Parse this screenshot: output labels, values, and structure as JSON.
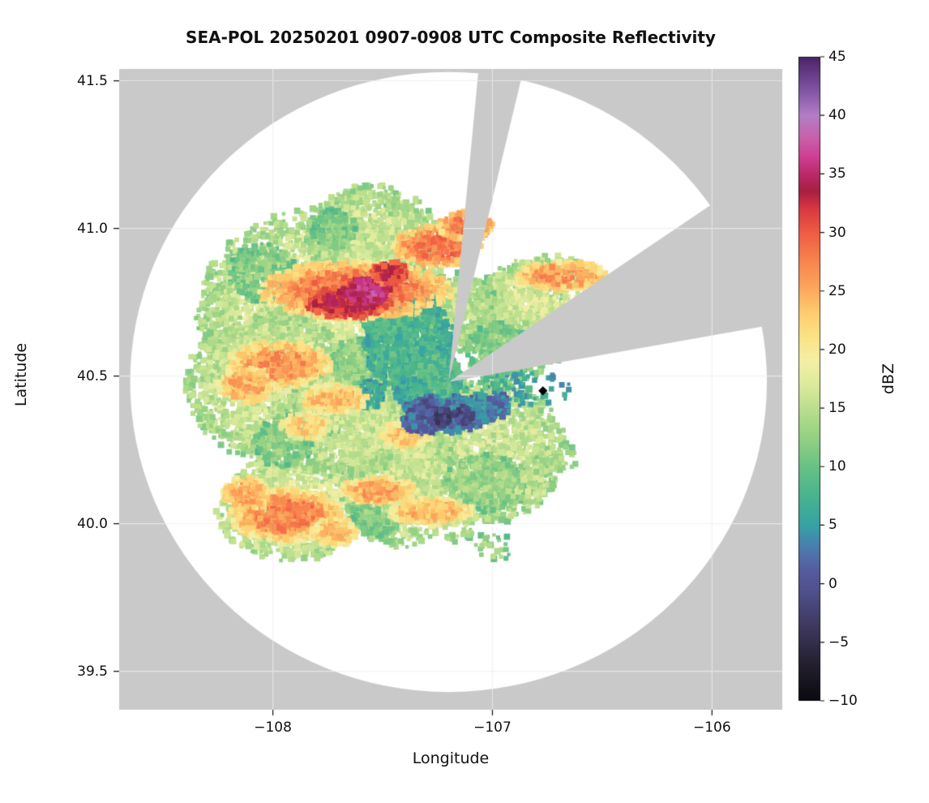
{
  "chart_data": {
    "type": "heatmap",
    "subtype": "radar_composite_reflectivity_ppi",
    "title": "SEA-POL 20250201 0907-0908 UTC Composite Reflectivity",
    "xlabel": "Longitude",
    "ylabel": "Latitude",
    "xlim": [
      -108.7,
      -105.68
    ],
    "ylim": [
      39.37,
      41.54
    ],
    "xticks": [
      -108,
      -107,
      -106
    ],
    "xtick_labels": [
      "−108",
      "−107",
      "−106"
    ],
    "yticks": [
      39.5,
      40.0,
      40.5,
      41.0,
      41.5
    ],
    "ytick_labels": [
      "39.5",
      "40.0",
      "40.5",
      "41.0",
      "41.5"
    ],
    "grid": true,
    "background_outside_scan": "#c9c9c9",
    "scan_area_color": "#ffffff",
    "colorbar": {
      "label": "dBZ",
      "min": -10,
      "max": 45,
      "ticks": [
        45,
        40,
        35,
        30,
        25,
        20,
        15,
        10,
        5,
        0,
        -5,
        -10
      ],
      "tick_labels": [
        "45",
        "40",
        "35",
        "30",
        "25",
        "20",
        "15",
        "10",
        "5",
        "0",
        "−5",
        "−10"
      ]
    },
    "colormap_stops_dbz_hex": [
      [
        -10,
        "#0a0a10"
      ],
      [
        -7,
        "#231f2e"
      ],
      [
        -4,
        "#3b3659"
      ],
      [
        -1,
        "#4e4e88"
      ],
      [
        1,
        "#565a9e"
      ],
      [
        3,
        "#4b7bb0"
      ],
      [
        5,
        "#37a2a3"
      ],
      [
        7.5,
        "#49b48e"
      ],
      [
        10,
        "#68c286"
      ],
      [
        12.5,
        "#94d184"
      ],
      [
        15,
        "#bcdf8e"
      ],
      [
        17,
        "#dcea9d"
      ],
      [
        19,
        "#f4efa5"
      ],
      [
        21,
        "#fbe387"
      ],
      [
        23,
        "#fdcf70"
      ],
      [
        25,
        "#fcab5e"
      ],
      [
        27.5,
        "#f9854f"
      ],
      [
        30,
        "#ee5c43"
      ],
      [
        32,
        "#d8393f"
      ],
      [
        33.5,
        "#a81f41"
      ],
      [
        35,
        "#bb2a6a"
      ],
      [
        36.5,
        "#cf4094"
      ],
      [
        38,
        "#c95fa9"
      ],
      [
        40,
        "#b27fc6"
      ],
      [
        42,
        "#8456a8"
      ],
      [
        45,
        "#4b2368"
      ]
    ],
    "radar": {
      "center_lon": -107.2,
      "center_lat": 40.48,
      "radius_lon_deg": 1.45,
      "radius_lat_deg": 1.05,
      "blocked_sectors_azimuth_deg": [
        [
          5.5,
          14.5
        ],
        [
          56,
          81
        ]
      ],
      "site_marker": {
        "lon": -106.77,
        "lat": 40.45,
        "symbol": "diamond",
        "color": "#000000"
      }
    },
    "echoes": {
      "fields": [
        "lon",
        "lat",
        "semi_axis_lon_deg",
        "semi_axis_lat_deg",
        "rotation_deg",
        "dbz",
        "density",
        "edge_falloff_dbz"
      ],
      "blobs": [
        [
          -107.75,
          40.7,
          0.6,
          0.38,
          33,
          17,
          1.0,
          -4
        ],
        [
          -108.02,
          40.47,
          0.38,
          0.26,
          20,
          16,
          1.0,
          -3
        ],
        [
          -107.42,
          40.38,
          0.32,
          0.26,
          0,
          16,
          1.0,
          -3
        ],
        [
          -107.55,
          40.97,
          0.3,
          0.18,
          30,
          16,
          1.0,
          -3
        ],
        [
          -107.08,
          40.25,
          0.42,
          0.26,
          -10,
          16,
          1.0,
          -3
        ],
        [
          -106.88,
          40.68,
          0.24,
          0.2,
          -20,
          15,
          0.9,
          -3
        ],
        [
          -107.92,
          40.05,
          0.34,
          0.18,
          12,
          17,
          1.0,
          -3
        ],
        [
          -107.42,
          40.14,
          0.28,
          0.22,
          0,
          16,
          1.0,
          -3
        ],
        [
          -106.75,
          40.78,
          0.28,
          0.13,
          75,
          17,
          1.0,
          -3
        ],
        [
          -107.65,
          40.35,
          0.3,
          0.2,
          15,
          16,
          1.0,
          -3
        ],
        [
          -107.15,
          40.72,
          0.18,
          0.14,
          0,
          15,
          1.0,
          -3
        ],
        [
          -108.05,
          40.85,
          0.16,
          0.1,
          20,
          12,
          1.2,
          -2
        ],
        [
          -107.95,
          40.28,
          0.14,
          0.09,
          0,
          12,
          1.2,
          -2
        ],
        [
          -107.02,
          40.14,
          0.2,
          0.1,
          -5,
          13,
          1.2,
          -2
        ],
        [
          -107.52,
          40.04,
          0.13,
          0.09,
          0,
          12,
          1.2,
          -2
        ],
        [
          -106.97,
          40.58,
          0.16,
          0.1,
          60,
          12,
          1.2,
          -2
        ],
        [
          -107.72,
          41.0,
          0.1,
          0.07,
          30,
          12,
          1.2,
          -2
        ],
        [
          -107.62,
          40.55,
          0.12,
          0.08,
          0,
          13,
          1.2,
          -2
        ],
        [
          -107.38,
          40.62,
          0.21,
          0.17,
          -15,
          8,
          1.6,
          -2
        ],
        [
          -107.28,
          40.49,
          0.14,
          0.11,
          0,
          9,
          1.6,
          -2
        ],
        [
          -107.47,
          40.71,
          0.13,
          0.1,
          0,
          9,
          1.4,
          -2
        ],
        [
          -107.55,
          40.44,
          0.06,
          0.05,
          0,
          6,
          1.6,
          -1
        ],
        [
          -107.36,
          40.44,
          0.09,
          0.05,
          0,
          7,
          1.5,
          -1
        ],
        [
          -107.62,
          40.79,
          0.44,
          0.1,
          33,
          28,
          1.8,
          -7
        ],
        [
          -107.25,
          40.94,
          0.2,
          0.07,
          33,
          28,
          1.8,
          -6
        ],
        [
          -107.97,
          40.54,
          0.24,
          0.08,
          25,
          26,
          1.7,
          -6
        ],
        [
          -108.12,
          40.47,
          0.13,
          0.06,
          15,
          25,
          1.6,
          -5
        ],
        [
          -107.12,
          41.01,
          0.13,
          0.05,
          28,
          28,
          1.8,
          -6
        ],
        [
          -107.72,
          40.42,
          0.16,
          0.05,
          20,
          24,
          1.6,
          -5
        ],
        [
          -107.85,
          40.33,
          0.12,
          0.045,
          10,
          23,
          1.5,
          -5
        ],
        [
          -107.66,
          40.75,
          0.2,
          0.055,
          33,
          33,
          2.0,
          -4
        ],
        [
          -107.57,
          40.79,
          0.11,
          0.045,
          33,
          36,
          2.2,
          -3
        ],
        [
          -107.47,
          40.85,
          0.09,
          0.04,
          33,
          32,
          2.0,
          -3
        ],
        [
          -107.52,
          40.11,
          0.18,
          0.05,
          73,
          25,
          1.7,
          -6
        ],
        [
          -107.28,
          40.04,
          0.2,
          0.05,
          80,
          24,
          1.7,
          -6
        ],
        [
          -107.4,
          40.3,
          0.12,
          0.05,
          60,
          23,
          1.6,
          -5
        ],
        [
          -107.94,
          40.03,
          0.26,
          0.09,
          12,
          27,
          1.8,
          -7
        ],
        [
          -108.12,
          40.1,
          0.11,
          0.06,
          -25,
          25,
          1.6,
          -5
        ],
        [
          -107.72,
          39.97,
          0.11,
          0.05,
          5,
          24,
          1.6,
          -5
        ],
        [
          -106.68,
          40.84,
          0.22,
          0.05,
          60,
          26,
          1.7,
          -6
        ],
        [
          -107.22,
          40.37,
          0.2,
          0.065,
          3,
          3,
          2.2,
          -1
        ],
        [
          -107.06,
          40.39,
          0.11,
          0.05,
          0,
          4,
          2.0,
          -1
        ],
        [
          -107.32,
          40.35,
          0.09,
          0.05,
          0,
          2,
          2.0,
          -1
        ],
        [
          -107.24,
          40.36,
          0.055,
          0.035,
          0,
          -2,
          2.4,
          0
        ],
        [
          -107.13,
          40.37,
          0.045,
          0.03,
          0,
          -1,
          2.4,
          0
        ],
        [
          -107.3,
          40.39,
          0.035,
          0.03,
          0,
          0,
          2.4,
          0
        ],
        [
          -106.85,
          40.46,
          0.22,
          0.07,
          0,
          6,
          0.25,
          -2
        ],
        [
          -107.03,
          40.47,
          0.1,
          0.05,
          0,
          9,
          0.4,
          -2
        ],
        [
          -106.95,
          40.55,
          0.12,
          0.05,
          -10,
          12,
          0.3,
          -2
        ],
        [
          -107.0,
          39.92,
          0.1,
          0.05,
          0,
          13,
          0.4,
          -2
        ],
        [
          -106.82,
          40.13,
          0.12,
          0.06,
          0,
          15,
          0.5,
          -2
        ],
        [
          -107.15,
          39.98,
          0.08,
          0.05,
          0,
          14,
          0.4,
          -2
        ],
        [
          -106.7,
          40.22,
          0.1,
          0.05,
          20,
          15,
          0.5,
          -2
        ],
        [
          -107.45,
          41.07,
          0.04,
          0.03,
          0,
          14,
          1.0,
          -2
        ],
        [
          -106.97,
          40.4,
          0.07,
          0.04,
          0,
          3,
          1.2,
          -1
        ]
      ]
    }
  }
}
